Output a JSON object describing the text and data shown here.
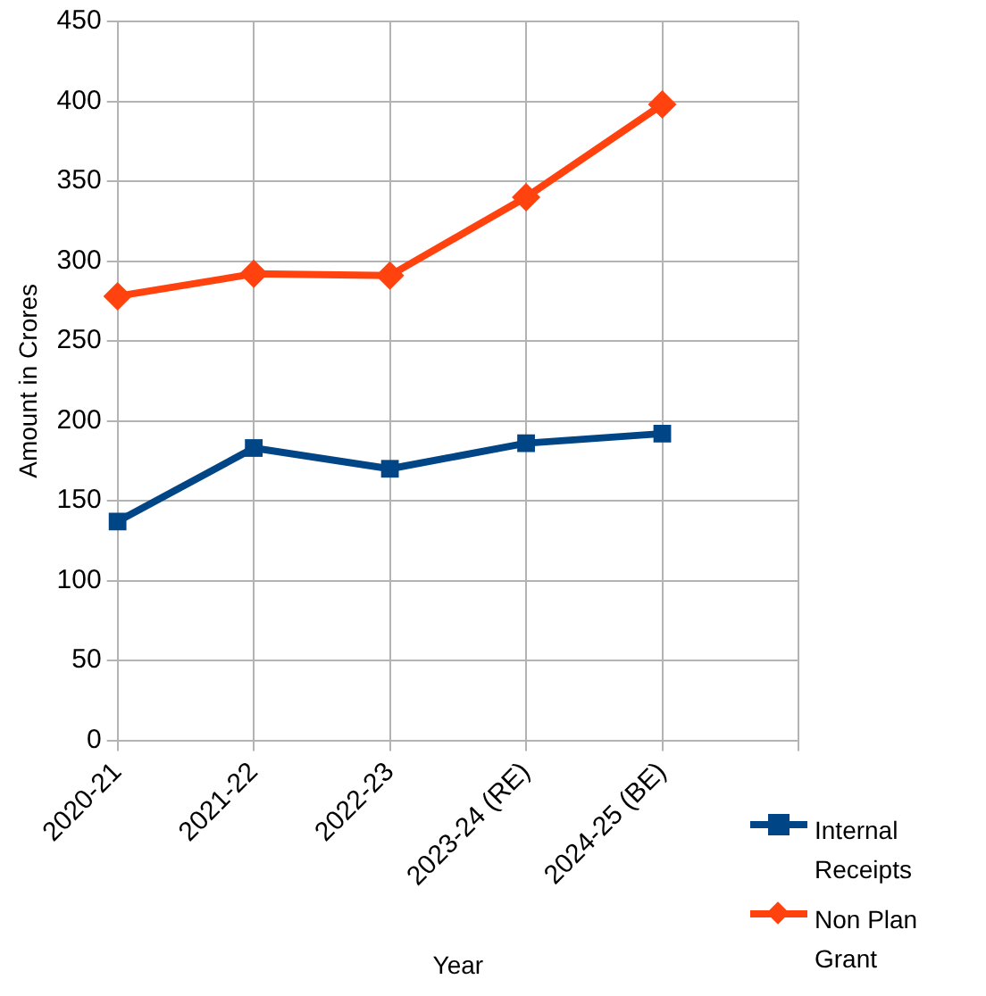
{
  "chart_data": {
    "type": "line",
    "xlabel": "Year",
    "ylabel": "Amount in Crores",
    "categories": [
      "2020-21",
      "2021-22",
      "2022-23",
      "2023-24 (RE)",
      "2024-25 (BE)",
      null
    ],
    "series": [
      {
        "name": "Internal Receipts",
        "color": "#004586",
        "marker": "square",
        "values": [
          137,
          183,
          170,
          186,
          192,
          null
        ]
      },
      {
        "name": "Non Plan Grant",
        "color": "#ff420e",
        "marker": "diamond",
        "values": [
          278,
          292,
          291,
          340,
          398,
          null
        ]
      }
    ],
    "ylim": [
      0,
      450
    ],
    "yticks": [
      0,
      50,
      100,
      150,
      200,
      250,
      300,
      350,
      400,
      450
    ],
    "grid": true,
    "legend": "bottom right"
  }
}
